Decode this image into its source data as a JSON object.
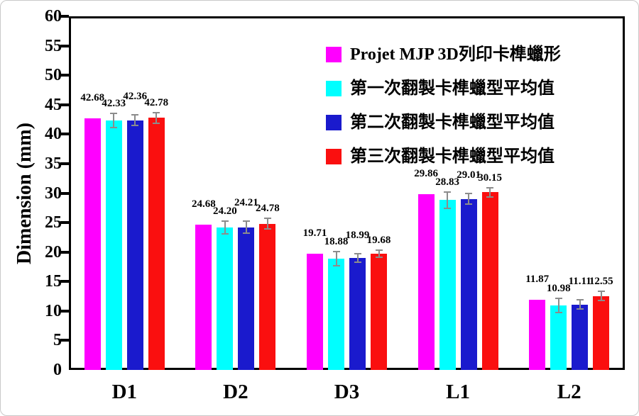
{
  "chart_data": {
    "type": "bar",
    "title": "",
    "xlabel": "",
    "ylabel": "Dimension (mm)",
    "ylim": [
      0,
      60
    ],
    "ytick_step": 5,
    "grid": false,
    "legend_position": "top-right-inside",
    "bar_value_labels_decimals": 2,
    "categories": [
      "D1",
      "D2",
      "D3",
      "L1",
      "L2"
    ],
    "series": [
      {
        "name": "Projet MJP 3D列印卡榫蠟形",
        "color": "#FF00FF",
        "values": [
          42.68,
          24.68,
          19.71,
          29.86,
          11.87
        ],
        "errors": [
          0,
          0,
          0,
          0,
          0
        ]
      },
      {
        "name": "第一次翻製卡榫蠟型平均值",
        "color": "#00FFFF",
        "values": [
          42.33,
          24.2,
          18.88,
          28.83,
          10.98
        ],
        "errors": [
          1.2,
          1.1,
          1.2,
          1.4,
          1.2
        ]
      },
      {
        "name": "第二次翻製卡榫蠟型平均值",
        "color": "#1A1ACD",
        "values": [
          42.36,
          24.21,
          18.99,
          29.01,
          11.11
        ],
        "errors": [
          0.9,
          1.0,
          0.7,
          0.9,
          0.8
        ]
      },
      {
        "name": "第三次翻製卡榫蠟型平均值",
        "color": "#FA0F0F",
        "values": [
          42.78,
          24.78,
          19.68,
          30.15,
          12.55
        ],
        "errors": [
          0.9,
          0.9,
          0.6,
          0.8,
          0.8
        ]
      }
    ],
    "colors": {
      "axis": "#000000",
      "error_bar": "#8c8c8c",
      "background": "#ffffff",
      "outer_border": "#c9c9c9"
    }
  }
}
